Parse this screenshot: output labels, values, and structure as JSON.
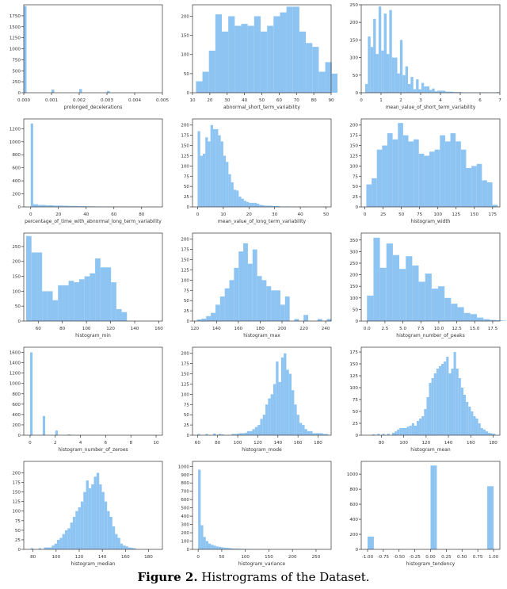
{
  "caption": {
    "figure_label": "Figure 2.",
    "text": " Histrograms of the Dataset."
  },
  "style": {
    "bar_color": "#8ec4f2",
    "axis_color": "#333333",
    "text_color": "#333333"
  },
  "chart_data": [
    {
      "type": "bar",
      "xlabel": "prolonged_decelerations",
      "xlim": [
        0,
        0.005
      ],
      "ylim": [
        0,
        2000
      ],
      "xticks": [
        0,
        0.001,
        0.002,
        0.003,
        0.004,
        0.005
      ],
      "xtick_labels": [
        "0.000",
        "0.001",
        "0.002",
        "0.003",
        "0.004",
        "0.005"
      ],
      "yticks": [
        0,
        250,
        500,
        750,
        1000,
        1250,
        1500,
        1750
      ],
      "bin_start": 0,
      "bin_width": 0.0001,
      "values": [
        1970,
        0,
        0,
        0,
        0,
        0,
        0,
        0,
        0,
        0,
        72,
        0,
        0,
        0,
        0,
        0,
        0,
        0,
        0,
        0,
        85,
        0,
        0,
        0,
        0,
        0,
        0,
        0,
        0,
        0,
        40,
        0,
        0,
        0,
        0,
        0,
        0,
        0,
        0,
        0,
        0,
        0,
        0,
        0,
        0,
        0,
        0,
        0,
        0,
        0
      ]
    },
    {
      "type": "bar",
      "xlabel": "abnormal_short_term_variability",
      "xlim": [
        10,
        90
      ],
      "ylim": [
        0,
        230
      ],
      "xticks": [
        10,
        20,
        30,
        40,
        50,
        60,
        70,
        80,
        90
      ],
      "yticks": [
        0,
        50,
        100,
        150,
        200
      ],
      "bin_start": 12,
      "bin_width": 3.73,
      "values": [
        30,
        55,
        110,
        205,
        160,
        200,
        175,
        180,
        175,
        200,
        160,
        175,
        200,
        210,
        225,
        225,
        160,
        130,
        120,
        55,
        80,
        50,
        30,
        20,
        12
      ]
    },
    {
      "type": "bar",
      "xlabel": "mean_value_of_short_term_variability",
      "xlim": [
        0,
        7
      ],
      "ylim": [
        0,
        250
      ],
      "xticks": [
        0,
        1,
        2,
        3,
        4,
        5,
        6,
        7
      ],
      "yticks": [
        0,
        50,
        100,
        150,
        200,
        250
      ],
      "bin_start": 0.2,
      "bin_width": 0.135,
      "values": [
        25,
        160,
        130,
        210,
        110,
        245,
        120,
        225,
        110,
        235,
        100,
        100,
        55,
        150,
        50,
        75,
        25,
        45,
        10,
        38,
        10,
        28,
        18,
        18,
        8,
        12,
        4,
        6,
        6,
        6,
        3,
        3,
        3,
        2,
        2,
        2,
        1,
        1,
        1,
        1,
        1,
        1,
        1,
        1,
        1,
        1,
        1,
        1,
        1,
        2
      ]
    },
    {
      "type": "bar",
      "xlabel": "percentage_of_time_with_abnormal_long_term_variability",
      "xlim": [
        -5,
        95
      ],
      "ylim": [
        0,
        1350
      ],
      "xticks": [
        0,
        20,
        40,
        60,
        80
      ],
      "yticks": [
        0,
        200,
        400,
        600,
        800,
        1000,
        1200
      ],
      "bin_start": 0,
      "bin_width": 1.8,
      "values": [
        1280,
        40,
        40,
        30,
        30,
        30,
        25,
        25,
        25,
        20,
        20,
        20,
        20,
        18,
        18,
        15,
        15,
        15,
        15,
        12,
        12,
        12,
        10,
        10,
        8,
        8,
        6,
        6,
        5,
        5,
        5,
        4,
        4,
        4,
        3,
        3,
        3,
        2,
        2,
        2,
        2,
        2,
        1,
        1,
        1,
        1,
        1,
        1,
        1,
        1
      ]
    },
    {
      "type": "bar",
      "xlabel": "mean_value_of_long_term_variability",
      "xlim": [
        -2,
        52
      ],
      "ylim": [
        0,
        215
      ],
      "xticks": [
        0,
        10,
        20,
        30,
        40,
        50
      ],
      "yticks": [
        0,
        25,
        50,
        75,
        100,
        125,
        150,
        175,
        200
      ],
      "bin_start": 0,
      "bin_width": 1.0,
      "values": [
        185,
        125,
        130,
        170,
        160,
        200,
        190,
        190,
        175,
        160,
        125,
        110,
        80,
        60,
        42,
        40,
        25,
        20,
        15,
        12,
        10,
        10,
        10,
        8,
        5,
        4,
        3,
        3,
        3,
        2,
        2,
        2,
        1,
        1,
        1,
        1,
        0,
        1,
        0,
        1,
        0,
        1,
        0,
        0,
        0,
        0,
        0,
        0,
        0,
        1
      ]
    },
    {
      "type": "bar",
      "xlabel": "histogram_width",
      "xlim": [
        -5,
        185
      ],
      "ylim": [
        0,
        215
      ],
      "xticks": [
        0,
        25,
        50,
        75,
        100,
        125,
        150,
        175
      ],
      "yticks": [
        0,
        25,
        50,
        75,
        100,
        125,
        150,
        175,
        200
      ],
      "bin_start": 2,
      "bin_width": 7.2,
      "values": [
        55,
        70,
        140,
        150,
        180,
        165,
        205,
        175,
        160,
        165,
        130,
        125,
        135,
        140,
        175,
        160,
        180,
        160,
        140,
        95,
        100,
        105,
        65,
        60,
        5
      ]
    },
    {
      "type": "bar",
      "xlabel": "histogram_min",
      "xlim": [
        48,
        163
      ],
      "ylim": [
        0,
        295
      ],
      "xticks": [
        60,
        80,
        100,
        120,
        140,
        160
      ],
      "yticks": [
        0,
        50,
        100,
        150,
        200,
        250
      ],
      "bin_start": 50,
      "bin_width": 4.4,
      "values": [
        285,
        230,
        230,
        100,
        100,
        70,
        120,
        120,
        135,
        130,
        140,
        150,
        160,
        210,
        180,
        180,
        130,
        40,
        30
      ]
    },
    {
      "type": "bar",
      "xlabel": "histogram_max",
      "xlim": [
        118,
        245
      ],
      "ylim": [
        0,
        215
      ],
      "xticks": [
        120,
        140,
        160,
        180,
        200,
        220,
        240
      ],
      "yticks": [
        0,
        25,
        50,
        75,
        100,
        125,
        150,
        175,
        200
      ],
      "bin_start": 122,
      "bin_width": 4.25,
      "values": [
        4,
        6,
        12,
        20,
        40,
        60,
        80,
        100,
        130,
        170,
        190,
        140,
        175,
        110,
        100,
        85,
        75,
        75,
        40,
        60,
        0,
        5,
        0,
        15,
        0,
        0,
        5,
        0,
        5
      ]
    },
    {
      "type": "bar",
      "xlabel": "histogram_number_of_peaks",
      "xlim": [
        -0.8,
        18.5
      ],
      "ylim": [
        0,
        380
      ],
      "xticks": [
        0,
        2.5,
        5,
        7.5,
        10,
        12.5,
        15,
        17.5
      ],
      "xtick_labels": [
        "0.0",
        "2.5",
        "5.0",
        "7.5",
        "10.0",
        "12.5",
        "15.0",
        "17.5"
      ],
      "yticks": [
        0,
        50,
        100,
        150,
        200,
        250,
        300,
        350
      ],
      "bin_start": 0,
      "bin_width": 0.9,
      "values": [
        110,
        360,
        230,
        335,
        285,
        225,
        280,
        240,
        170,
        205,
        140,
        150,
        100,
        75,
        60,
        35,
        30,
        15,
        8,
        5,
        3,
        2
      ]
    },
    {
      "type": "bar",
      "xlabel": "histogram_number_of_zeroes",
      "xlim": [
        -0.5,
        10.5
      ],
      "ylim": [
        0,
        1700
      ],
      "xticks": [
        0,
        2,
        4,
        6,
        8,
        10
      ],
      "yticks": [
        0,
        200,
        400,
        600,
        800,
        1000,
        1200,
        1400,
        1600
      ],
      "bin_start": 0,
      "bin_width": 0.2,
      "values": [
        1600,
        0,
        0,
        0,
        0,
        370,
        0,
        0,
        0,
        0,
        90,
        0,
        0,
        0,
        0,
        15,
        0,
        0,
        0,
        0,
        5,
        0,
        0,
        0,
        0,
        3,
        0,
        0,
        0,
        0,
        2,
        0,
        0,
        0,
        0,
        0,
        0,
        0,
        0,
        0,
        0,
        0,
        0,
        0,
        0,
        0,
        0,
        0,
        0,
        1
      ]
    },
    {
      "type": "bar",
      "xlabel": "histogram_mode",
      "xlim": [
        55,
        193
      ],
      "ylim": [
        0,
        215
      ],
      "xticks": [
        60,
        80,
        100,
        120,
        140,
        160,
        180
      ],
      "yticks": [
        0,
        25,
        50,
        75,
        100,
        125,
        150,
        175,
        200
      ],
      "bin_start": 60,
      "bin_width": 2.6,
      "values": [
        3,
        0,
        0,
        3,
        0,
        0,
        4,
        0,
        3,
        2,
        0,
        0,
        0,
        3,
        3,
        4,
        5,
        5,
        6,
        10,
        10,
        15,
        20,
        25,
        40,
        50,
        75,
        90,
        100,
        125,
        180,
        130,
        190,
        200,
        160,
        150,
        110,
        75,
        50,
        30,
        25,
        15,
        10,
        10,
        5,
        5,
        5,
        5,
        3,
        3
      ]
    },
    {
      "type": "bar",
      "xlabel": "histogram_mean",
      "xlim": [
        62,
        186
      ],
      "ylim": [
        0,
        185
      ],
      "xticks": [
        80,
        100,
        120,
        140,
        160,
        180
      ],
      "yticks": [
        0,
        25,
        50,
        75,
        100,
        125,
        150,
        175
      ],
      "bin_start": 72,
      "bin_width": 2.2,
      "values": [
        2,
        0,
        3,
        0,
        3,
        0,
        3,
        0,
        5,
        8,
        12,
        15,
        15,
        15,
        18,
        20,
        25,
        20,
        30,
        35,
        40,
        55,
        80,
        110,
        120,
        130,
        140,
        145,
        150,
        155,
        165,
        130,
        140,
        175,
        140,
        120,
        100,
        85,
        70,
        60,
        50,
        40,
        35,
        25,
        15,
        12,
        8,
        5,
        4,
        3
      ]
    },
    {
      "type": "bar",
      "xlabel": "histogram_median",
      "xlim": [
        72,
        192
      ],
      "ylim": [
        0,
        230
      ],
      "xticks": [
        80,
        100,
        120,
        140,
        160,
        180
      ],
      "yticks": [
        0,
        25,
        50,
        75,
        100,
        125,
        150,
        175,
        200
      ],
      "bin_start": 78,
      "bin_width": 2.28,
      "values": [
        3,
        0,
        0,
        3,
        0,
        5,
        5,
        5,
        10,
        15,
        25,
        30,
        40,
        50,
        55,
        70,
        85,
        100,
        110,
        125,
        150,
        180,
        160,
        170,
        190,
        200,
        170,
        150,
        125,
        100,
        85,
        60,
        40,
        30,
        15,
        10,
        8,
        5,
        4,
        3
      ]
    },
    {
      "type": "bar",
      "xlabel": "histogram_variance",
      "xlim": [
        -12,
        282
      ],
      "ylim": [
        0,
        1060
      ],
      "xticks": [
        0,
        50,
        100,
        150,
        200,
        250
      ],
      "yticks": [
        0,
        100,
        200,
        300,
        400,
        500,
        600,
        700,
        800,
        900,
        1000
      ],
      "bin_start": 0,
      "bin_width": 5.4,
      "values": [
        960,
        290,
        150,
        100,
        70,
        55,
        45,
        35,
        30,
        25,
        20,
        18,
        15,
        12,
        10,
        10,
        8,
        6,
        5,
        5,
        4,
        3,
        3,
        3,
        2,
        2,
        2,
        2,
        1,
        1,
        1,
        1,
        1,
        1,
        1,
        1,
        1,
        1,
        1,
        1,
        1,
        1,
        1,
        1,
        1,
        1,
        1,
        1,
        1,
        1
      ]
    },
    {
      "type": "bar",
      "xlabel": "histogram_tendency",
      "xlim": [
        -1.1,
        1.1
      ],
      "ylim": [
        0,
        1170
      ],
      "xticks": [
        -1,
        -0.75,
        -0.5,
        -0.25,
        0,
        0.25,
        0.5,
        0.75,
        1
      ],
      "xtick_labels": [
        "-1.00",
        "-0.75",
        "-0.50",
        "-0.25",
        "0.00",
        "0.25",
        "0.50",
        "0.75",
        "1.00"
      ],
      "yticks": [
        0,
        200,
        400,
        600,
        800,
        1000
      ],
      "bin_start": -1,
      "bin_width": 0.1,
      "values": [
        170,
        0,
        0,
        0,
        0,
        0,
        0,
        0,
        0,
        0,
        1115,
        0,
        0,
        0,
        0,
        0,
        0,
        0,
        0,
        840
      ]
    }
  ]
}
